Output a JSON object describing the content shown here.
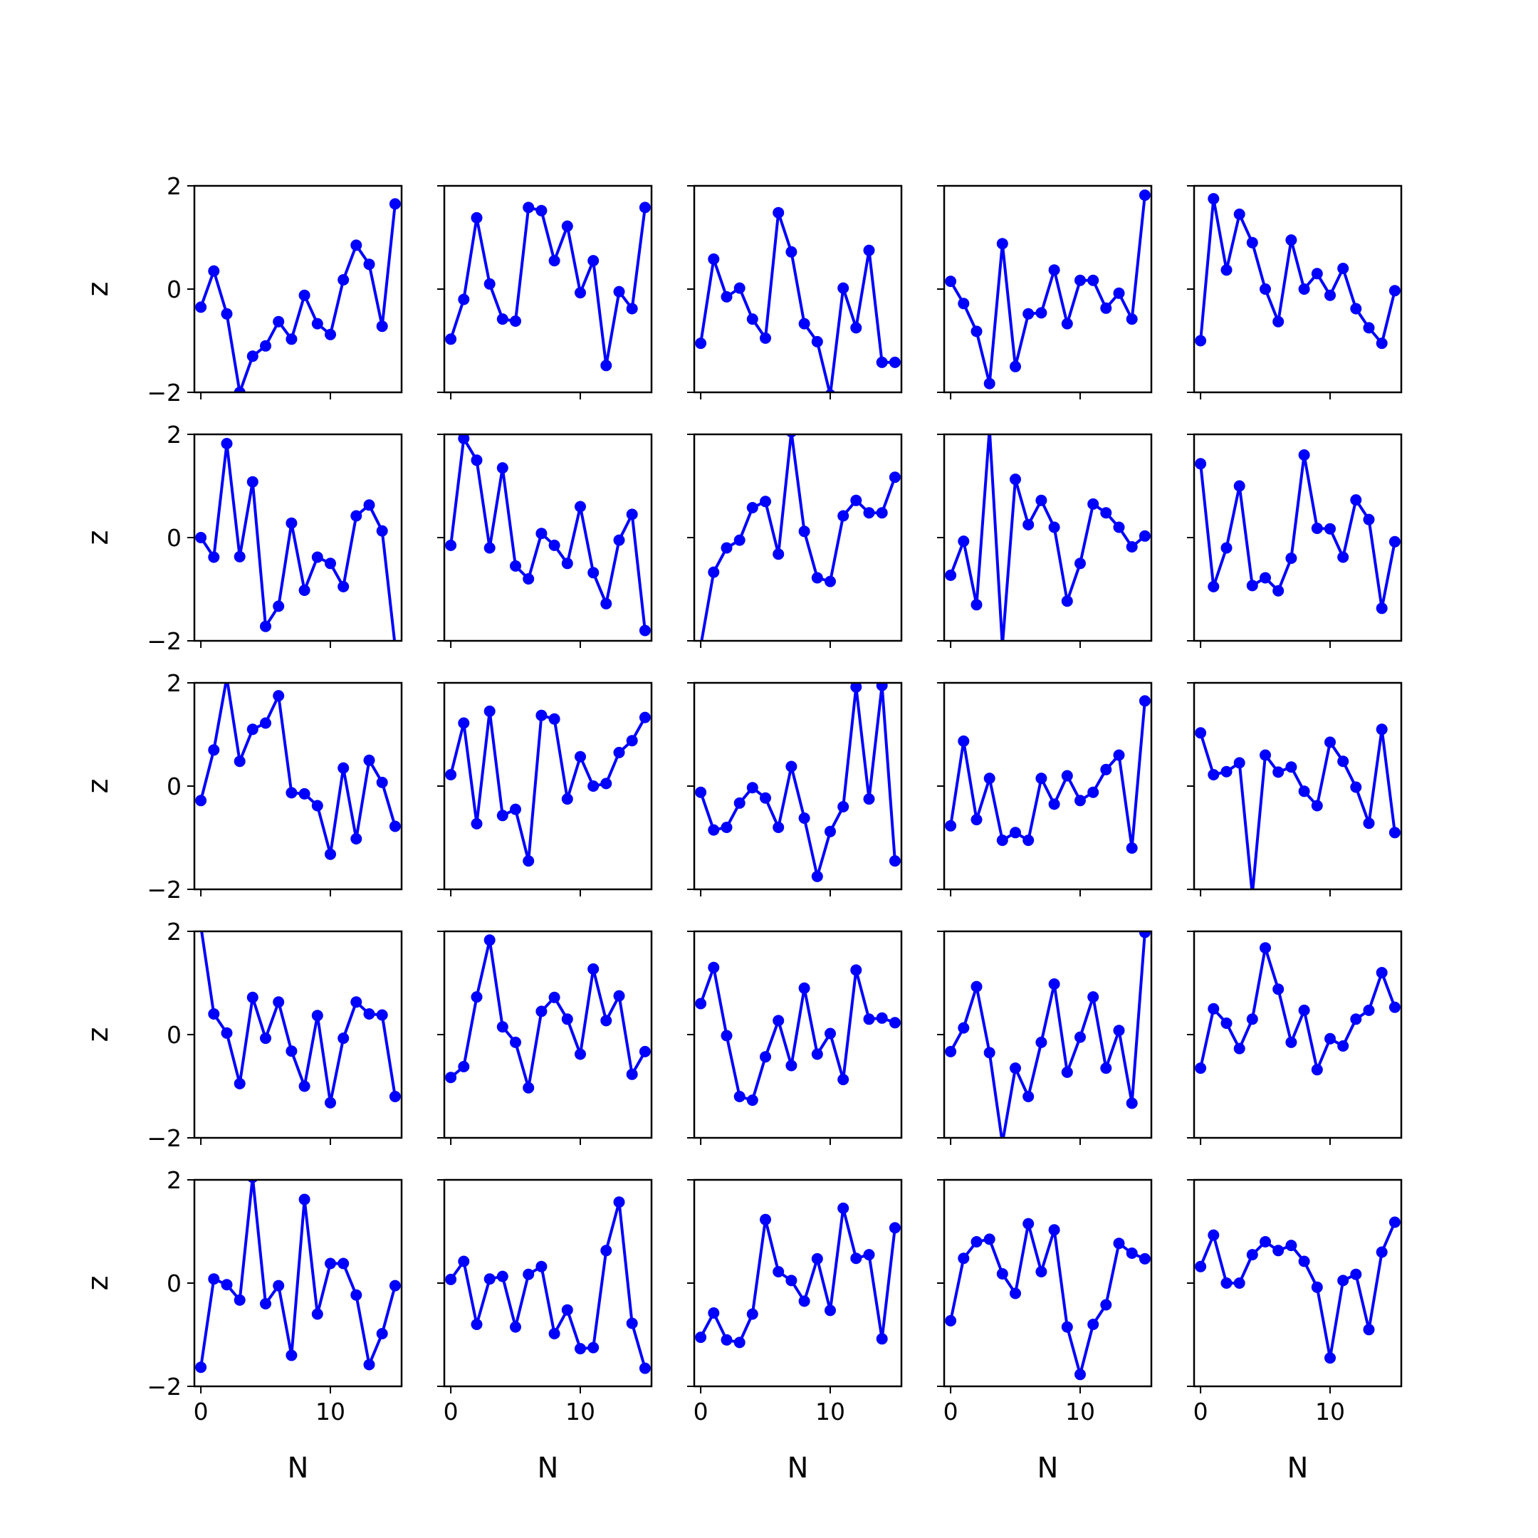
{
  "chart_data": {
    "type": "line",
    "layout": {
      "rows": 5,
      "cols": 5
    },
    "style": {
      "line_color": "#0000ff",
      "marker": "circle",
      "axis_color": "#000000",
      "background": "#ffffff"
    },
    "x": [
      0,
      1,
      2,
      3,
      4,
      5,
      6,
      7,
      8,
      9,
      10,
      11,
      12,
      13,
      14,
      15
    ],
    "xlim": [
      -0.5,
      15.5
    ],
    "ylim": [
      -2,
      2
    ],
    "xlabel": "N",
    "ylabel": "z",
    "x_ticks": [
      0,
      10
    ],
    "x_tick_labels": [
      "0",
      "10"
    ],
    "y_ticks": [
      2,
      0,
      -2
    ],
    "y_tick_labels": [
      "2",
      "0",
      "−2"
    ],
    "grid": false,
    "legend": false,
    "panels": [
      [
        -0.35,
        0.35,
        -0.48,
        -2.0,
        -1.3,
        -1.1,
        -0.63,
        -0.97,
        -0.12,
        -0.67,
        -0.88,
        0.18,
        0.85,
        0.48,
        -0.72,
        1.65
      ],
      [
        -0.97,
        -0.2,
        1.38,
        0.1,
        -0.58,
        -0.62,
        1.58,
        1.52,
        0.55,
        1.22,
        -0.07,
        0.55,
        -1.48,
        -0.05,
        -0.38,
        1.58
      ],
      [
        -1.05,
        0.58,
        -0.15,
        0.02,
        -0.58,
        -0.95,
        1.48,
        0.72,
        -0.67,
        -1.02,
        -2.05,
        0.02,
        -0.75,
        0.75,
        -1.42,
        -1.42
      ],
      [
        0.15,
        -0.28,
        -0.82,
        -1.83,
        0.88,
        -1.5,
        -0.48,
        -0.46,
        0.37,
        -0.67,
        0.17,
        0.17,
        -0.37,
        -0.08,
        -0.58,
        1.82
      ],
      [
        -1.0,
        1.75,
        0.37,
        1.45,
        0.9,
        0.0,
        -0.63,
        0.95,
        0.0,
        0.3,
        -0.12,
        0.4,
        -0.38,
        -0.75,
        -1.05,
        -0.03
      ],
      [
        0.0,
        -0.38,
        1.82,
        -0.37,
        1.08,
        -1.72,
        -1.33,
        0.28,
        -1.02,
        -0.38,
        -0.5,
        -0.95,
        0.42,
        0.63,
        0.13,
        -2.1
      ],
      [
        -0.15,
        1.92,
        1.5,
        -0.2,
        1.35,
        -0.55,
        -0.8,
        0.08,
        -0.15,
        -0.5,
        0.6,
        -0.68,
        -1.28,
        -0.05,
        0.45,
        -1.8
      ],
      [
        -2.1,
        -0.67,
        -0.2,
        -0.05,
        0.58,
        0.7,
        -0.32,
        2.05,
        0.12,
        -0.78,
        -0.85,
        0.42,
        0.72,
        0.48,
        0.48,
        1.17
      ],
      [
        -0.73,
        -0.07,
        -1.3,
        2.1,
        -2.1,
        1.13,
        0.25,
        0.72,
        0.2,
        -1.23,
        -0.5,
        0.65,
        0.48,
        0.2,
        -0.18,
        0.03
      ],
      [
        1.43,
        -0.95,
        -0.2,
        1.0,
        -0.93,
        -0.78,
        -1.03,
        -0.4,
        1.6,
        0.18,
        0.17,
        -0.38,
        0.73,
        0.35,
        -1.37,
        -0.08
      ]
    ],
    "panels_more": [
      [
        -0.28,
        0.7,
        2.1,
        0.48,
        1.1,
        1.22,
        1.75,
        -0.13,
        -0.15,
        -0.38,
        -1.32,
        0.35,
        -1.02,
        0.5,
        0.07,
        -0.78
      ],
      [
        0.22,
        1.22,
        -0.73,
        1.45,
        -0.57,
        -0.45,
        -1.45,
        1.37,
        1.3,
        -0.25,
        0.57,
        0.0,
        0.05,
        0.65,
        0.88,
        1.33
      ],
      [
        -0.12,
        -0.85,
        -0.8,
        -0.33,
        -0.03,
        -0.23,
        -0.8,
        0.38,
        -0.62,
        -1.75,
        -0.88,
        -0.4,
        1.92,
        -0.25,
        1.95,
        -1.45
      ],
      [
        -0.77,
        0.87,
        -0.65,
        0.15,
        -1.05,
        -0.9,
        -1.05,
        0.15,
        -0.35,
        0.2,
        -0.28,
        -0.12,
        0.32,
        0.6,
        -1.2,
        1.65
      ],
      [
        1.03,
        0.22,
        0.28,
        0.45,
        -2.1,
        0.6,
        0.27,
        0.37,
        -0.1,
        -0.38,
        0.85,
        0.48,
        -0.02,
        -0.72,
        1.1,
        -0.9
      ],
      [
        2.1,
        0.4,
        0.03,
        -0.95,
        0.72,
        -0.07,
        0.63,
        -0.32,
        -1.0,
        0.37,
        -1.32,
        -0.07,
        0.63,
        0.4,
        0.38,
        -1.2
      ],
      [
        -0.83,
        -0.62,
        0.73,
        1.83,
        0.15,
        -0.15,
        -1.03,
        0.45,
        0.72,
        0.3,
        -0.38,
        1.27,
        0.27,
        0.75,
        -0.77,
        -0.33
      ],
      [
        0.6,
        1.3,
        -0.02,
        -1.2,
        -1.27,
        -0.43,
        0.27,
        -0.6,
        0.9,
        -0.38,
        0.02,
        -0.87,
        1.25,
        0.3,
        0.32,
        0.23
      ],
      [
        -0.33,
        0.13,
        0.93,
        -0.35,
        -2.1,
        -0.65,
        -1.2,
        -0.15,
        0.98,
        -0.73,
        -0.05,
        0.73,
        -0.65,
        0.08,
        -1.33,
        1.98
      ],
      [
        -0.65,
        0.5,
        0.22,
        -0.27,
        0.3,
        1.68,
        0.88,
        -0.15,
        0.47,
        -0.68,
        -0.08,
        -0.22,
        0.3,
        0.47,
        1.2,
        0.53
      ],
      [
        -1.63,
        0.08,
        -0.03,
        -0.33,
        2.05,
        -0.4,
        -0.05,
        -1.4,
        1.62,
        -0.6,
        0.38,
        0.38,
        -0.23,
        -1.58,
        -0.98,
        -0.05
      ],
      [
        0.07,
        0.42,
        -0.8,
        0.08,
        0.13,
        -0.85,
        0.17,
        0.32,
        -0.98,
        -0.52,
        -1.27,
        -1.25,
        0.63,
        1.57,
        -0.78,
        -1.65
      ],
      [
        -1.05,
        -0.58,
        -1.1,
        -1.15,
        -0.6,
        1.23,
        0.22,
        0.05,
        -0.35,
        0.47,
        -0.53,
        1.45,
        0.48,
        0.55,
        -1.08,
        1.07
      ],
      [
        -0.73,
        0.48,
        0.8,
        0.85,
        0.18,
        -0.2,
        1.15,
        0.22,
        1.03,
        -0.85,
        -1.77,
        -0.8,
        -0.42,
        0.77,
        0.58,
        0.47
      ],
      [
        0.32,
        0.93,
        0.0,
        0.0,
        0.55,
        0.8,
        0.63,
        0.73,
        0.42,
        -0.08,
        -1.45,
        0.05,
        0.17,
        -0.9,
        0.6,
        1.18
      ]
    ]
  }
}
